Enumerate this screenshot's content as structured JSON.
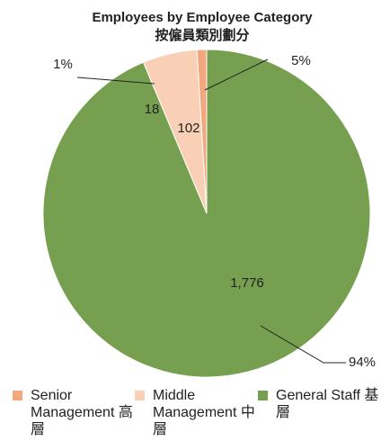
{
  "chart_data": {
    "type": "pie",
    "title": "Employees by Employee Category",
    "subtitle": "按僱員類別劃分",
    "categories": [
      "Senior Management 高層",
      "Middle Management 中層",
      "General Staff 基層"
    ],
    "values": [
      18,
      102,
      1776
    ],
    "value_labels": [
      "18",
      "102",
      "1,776"
    ],
    "percent_labels": [
      "1%",
      "5%",
      "94%"
    ],
    "colors": [
      "#f2a87c",
      "#f9cfb5",
      "#76a050"
    ]
  }
}
